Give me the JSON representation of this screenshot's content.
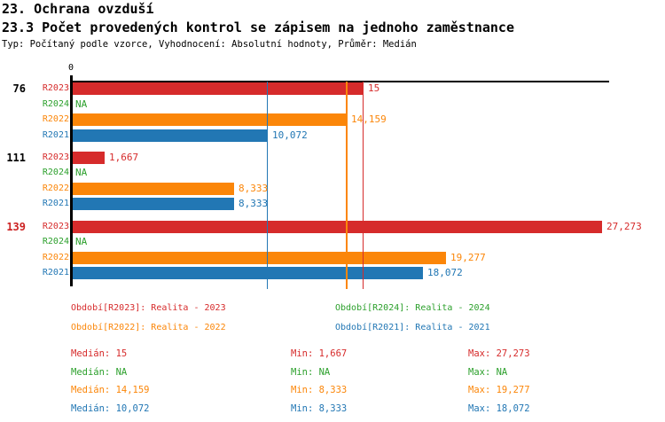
{
  "header": {
    "title1": "23. Ochrana ovzduší",
    "title2": "23.3 Počet provedených kontrol se zápisem na jednoho zaměstnance",
    "subtitle": "Typ: Počítaný podle vzorce, Vyhodnocení: Absolutní hodnoty, Průměr: Medián"
  },
  "colors": {
    "R2023": "#d62b2b",
    "R2024": "#2ca02c",
    "R2022": "#fb8609",
    "R2021": "#2277b4",
    "axis": "#000000",
    "group_normal": "#000000",
    "group_highlight": "#cc2222"
  },
  "chart_data": {
    "type": "bar",
    "orientation": "horizontal",
    "title": "23.3 Počet provedených kontrol se zápisem na jednoho zaměstnance",
    "axis": {
      "tick_label": "0",
      "min": 0,
      "max": 27.66,
      "grid": false
    },
    "series_order": [
      "R2023",
      "R2024",
      "R2022",
      "R2021"
    ],
    "groups": [
      {
        "label": "76",
        "highlight": false,
        "bars": [
          {
            "series": "R2023",
            "value": 15,
            "display": "15"
          },
          {
            "series": "R2024",
            "value": null,
            "display": "NA"
          },
          {
            "series": "R2022",
            "value": 14.159,
            "display": "14,159"
          },
          {
            "series": "R2021",
            "value": 10.072,
            "display": "10,072"
          }
        ]
      },
      {
        "label": "111",
        "highlight": false,
        "bars": [
          {
            "series": "R2023",
            "value": 1.667,
            "display": "1,667"
          },
          {
            "series": "R2024",
            "value": null,
            "display": "NA"
          },
          {
            "series": "R2022",
            "value": 8.333,
            "display": "8,333"
          },
          {
            "series": "R2021",
            "value": 8.333,
            "display": "8,333"
          }
        ]
      },
      {
        "label": "139",
        "highlight": true,
        "bars": [
          {
            "series": "R2023",
            "value": 27.273,
            "display": "27,273"
          },
          {
            "series": "R2024",
            "value": null,
            "display": "NA"
          },
          {
            "series": "R2022",
            "value": 19.277,
            "display": "19,277"
          },
          {
            "series": "R2021",
            "value": 18.072,
            "display": "18,072"
          }
        ]
      }
    ],
    "median_lines": [
      {
        "series": "R2021",
        "value": 10.072
      },
      {
        "series": "R2022",
        "value": 14.159
      },
      {
        "series": "R2023",
        "value": 15
      }
    ]
  },
  "legend": [
    {
      "series": "R2023",
      "label": "Období[R2023]: Realita - 2023"
    },
    {
      "series": "R2024",
      "label": "Období[R2024]: Realita - 2024"
    },
    {
      "series": "R2022",
      "label": "Období[R2022]: Realita - 2022"
    },
    {
      "series": "R2021",
      "label": "Období[R2021]: Realita - 2021"
    }
  ],
  "stats": [
    {
      "series": "R2023",
      "median": "Medián: 15",
      "min": "Min: 1,667",
      "max": "Max: 27,273"
    },
    {
      "series": "R2024",
      "median": "Medián: NA",
      "min": "Min: NA",
      "max": "Max: NA"
    },
    {
      "series": "R2022",
      "median": "Medián: 14,159",
      "min": "Min: 8,333",
      "max": "Max: 19,277"
    },
    {
      "series": "R2021",
      "median": "Medián: 10,072",
      "min": "Min: 8,333",
      "max": "Max: 18,072"
    }
  ]
}
